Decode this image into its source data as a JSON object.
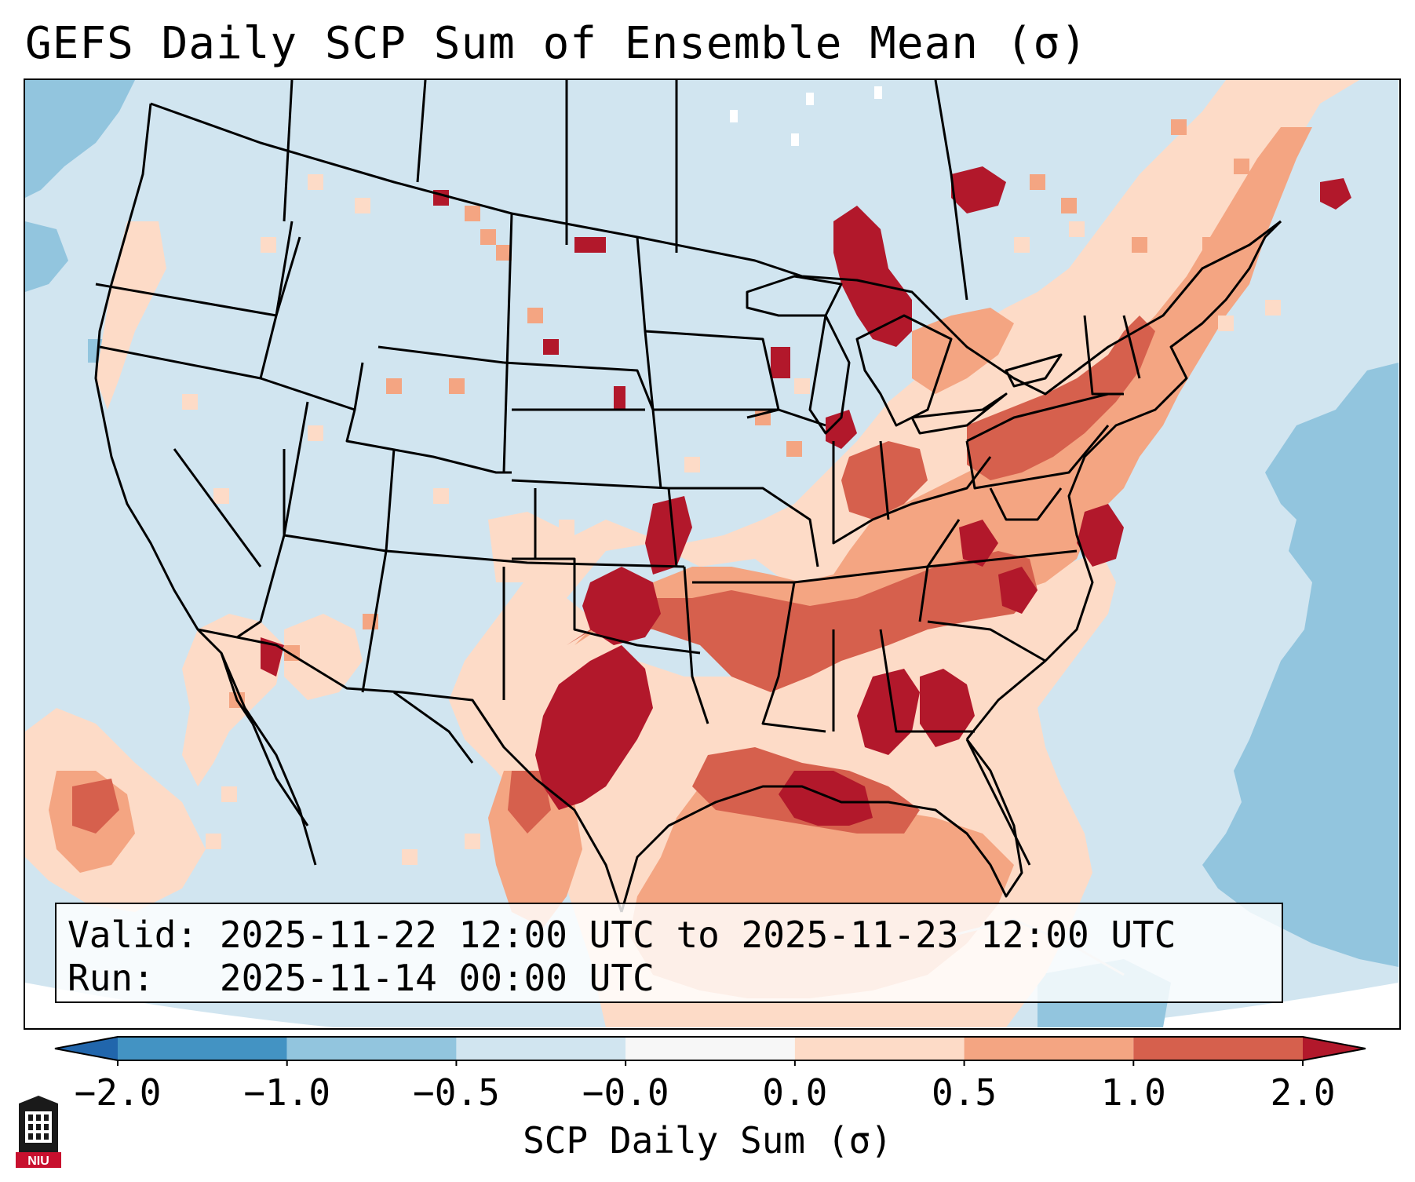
{
  "title": "GEFS Daily SCP Sum of Ensemble Mean (σ)",
  "info_box": {
    "valid_label": "Valid:",
    "valid_value": "2025-11-22 12:00 UTC to 2025-11-23 12:00 UTC",
    "run_label": "Run:",
    "run_value": "2025-11-14 00:00 UTC"
  },
  "colorbar": {
    "label": "SCP Daily Sum (σ)",
    "ticks": [
      "−2.0",
      "−1.0",
      "−0.5",
      "−0.0",
      "0.0",
      "0.5",
      "1.0",
      "2.0"
    ],
    "bins": [
      {
        "from": -2.0,
        "to": -1.0,
        "color": "#4393c3"
      },
      {
        "from": -1.0,
        "to": -0.5,
        "color": "#92c5de"
      },
      {
        "from": -0.5,
        "to": -0.0,
        "color": "#d1e5f0"
      },
      {
        "from": -0.0,
        "to": 0.0,
        "color": "#f7f7f7"
      },
      {
        "from": 0.0,
        "to": 0.5,
        "color": "#fddbc7"
      },
      {
        "from": 0.5,
        "to": 1.0,
        "color": "#f4a582"
      },
      {
        "from": 1.0,
        "to": 2.0,
        "color": "#d6604d"
      }
    ],
    "under_color": "#2166ac",
    "over_color": "#b2182b"
  },
  "logo": {
    "text": "NIU",
    "icon": "university-tower-icon"
  }
}
